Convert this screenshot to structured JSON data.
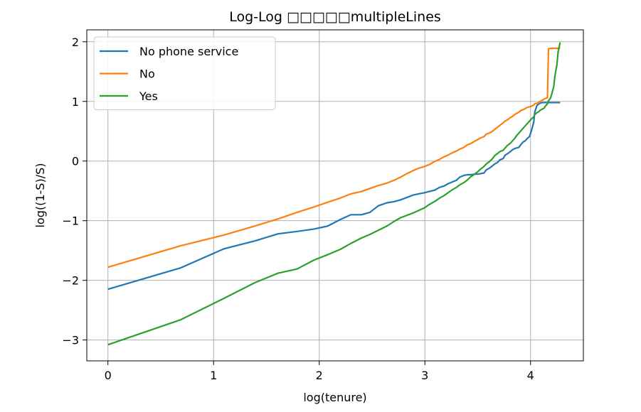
{
  "chart_data": {
    "type": "line",
    "title": "Log-Log □□□□□multipleLines",
    "xlabel": "log(tenure)",
    "ylabel": "log((1-S)/S)",
    "xlim": [
      -0.2,
      4.5
    ],
    "ylim": [
      -3.35,
      2.2
    ],
    "xticks": [
      0,
      1,
      2,
      3,
      4
    ],
    "yticks": [
      -3,
      -2,
      -1,
      0,
      1,
      2
    ],
    "xtick_labels": [
      "0",
      "1",
      "2",
      "3",
      "4"
    ],
    "ytick_labels": [
      "−3",
      "−2",
      "−1",
      "0",
      "1",
      "2"
    ],
    "grid": true,
    "legend_position": "upper-left",
    "series": [
      {
        "name": "No phone service",
        "color": "#1f77b4",
        "points": [
          [
            0,
            -2.15
          ],
          [
            0.69,
            -1.79
          ],
          [
            1.1,
            -1.47
          ],
          [
            1.39,
            -1.34
          ],
          [
            1.61,
            -1.22
          ],
          [
            1.79,
            -1.18
          ],
          [
            1.95,
            -1.14
          ],
          [
            2.08,
            -1.09
          ],
          [
            2.2,
            -0.98
          ],
          [
            2.3,
            -0.9
          ],
          [
            2.4,
            -0.9
          ],
          [
            2.48,
            -0.86
          ],
          [
            2.56,
            -0.75
          ],
          [
            2.64,
            -0.7
          ],
          [
            2.71,
            -0.68
          ],
          [
            2.77,
            -0.65
          ],
          [
            2.83,
            -0.61
          ],
          [
            2.89,
            -0.57
          ],
          [
            2.94,
            -0.55
          ],
          [
            3.0,
            -0.53
          ],
          [
            3.04,
            -0.51
          ],
          [
            3.09,
            -0.49
          ],
          [
            3.14,
            -0.44
          ],
          [
            3.18,
            -0.42
          ],
          [
            3.22,
            -0.38
          ],
          [
            3.26,
            -0.35
          ],
          [
            3.3,
            -0.32
          ],
          [
            3.33,
            -0.27
          ],
          [
            3.37,
            -0.24
          ],
          [
            3.4,
            -0.23
          ],
          [
            3.43,
            -0.23
          ],
          [
            3.47,
            -0.22
          ],
          [
            3.5,
            -0.22
          ],
          [
            3.53,
            -0.21
          ],
          [
            3.56,
            -0.2
          ],
          [
            3.58,
            -0.15
          ],
          [
            3.61,
            -0.12
          ],
          [
            3.64,
            -0.08
          ],
          [
            3.66,
            -0.05
          ],
          [
            3.69,
            -0.02
          ],
          [
            3.71,
            0.02
          ],
          [
            3.74,
            0.04
          ],
          [
            3.76,
            0.1
          ],
          [
            3.78,
            0.12
          ],
          [
            3.81,
            0.16
          ],
          [
            3.83,
            0.19
          ],
          [
            3.85,
            0.21
          ],
          [
            3.87,
            0.22
          ],
          [
            3.89,
            0.23
          ],
          [
            3.91,
            0.28
          ],
          [
            3.93,
            0.32
          ],
          [
            3.95,
            0.34
          ],
          [
            3.97,
            0.38
          ],
          [
            3.99,
            0.41
          ],
          [
            4.01,
            0.52
          ],
          [
            4.03,
            0.65
          ],
          [
            4.04,
            0.82
          ],
          [
            4.06,
            0.93
          ],
          [
            4.08,
            0.96
          ],
          [
            4.09,
            0.97
          ],
          [
            4.11,
            0.98
          ],
          [
            4.13,
            0.98
          ],
          [
            4.14,
            0.98
          ],
          [
            4.16,
            0.98
          ],
          [
            4.17,
            0.98
          ],
          [
            4.19,
            0.98
          ],
          [
            4.2,
            0.98
          ],
          [
            4.22,
            0.98
          ],
          [
            4.23,
            0.98
          ],
          [
            4.25,
            0.98
          ],
          [
            4.26,
            0.98
          ],
          [
            4.28,
            0.98
          ]
        ]
      },
      {
        "name": "No",
        "color": "#ff7f0e",
        "points": [
          [
            0,
            -1.78
          ],
          [
            0.69,
            -1.42
          ],
          [
            1.1,
            -1.24
          ],
          [
            1.39,
            -1.09
          ],
          [
            1.61,
            -0.97
          ],
          [
            1.79,
            -0.86
          ],
          [
            1.95,
            -0.77
          ],
          [
            2.08,
            -0.69
          ],
          [
            2.2,
            -0.62
          ],
          [
            2.3,
            -0.55
          ],
          [
            2.4,
            -0.51
          ],
          [
            2.48,
            -0.46
          ],
          [
            2.56,
            -0.41
          ],
          [
            2.64,
            -0.37
          ],
          [
            2.71,
            -0.32
          ],
          [
            2.77,
            -0.27
          ],
          [
            2.83,
            -0.21
          ],
          [
            2.89,
            -0.16
          ],
          [
            2.94,
            -0.12
          ],
          [
            3.0,
            -0.09
          ],
          [
            3.04,
            -0.06
          ],
          [
            3.09,
            -0.01
          ],
          [
            3.14,
            0.03
          ],
          [
            3.18,
            0.07
          ],
          [
            3.22,
            0.1
          ],
          [
            3.26,
            0.14
          ],
          [
            3.3,
            0.17
          ],
          [
            3.33,
            0.2
          ],
          [
            3.37,
            0.23
          ],
          [
            3.4,
            0.27
          ],
          [
            3.43,
            0.29
          ],
          [
            3.47,
            0.33
          ],
          [
            3.5,
            0.36
          ],
          [
            3.53,
            0.39
          ],
          [
            3.56,
            0.41
          ],
          [
            3.58,
            0.45
          ],
          [
            3.61,
            0.47
          ],
          [
            3.64,
            0.5
          ],
          [
            3.66,
            0.53
          ],
          [
            3.69,
            0.57
          ],
          [
            3.71,
            0.6
          ],
          [
            3.74,
            0.64
          ],
          [
            3.76,
            0.67
          ],
          [
            3.78,
            0.69
          ],
          [
            3.81,
            0.73
          ],
          [
            3.83,
            0.75
          ],
          [
            3.85,
            0.78
          ],
          [
            3.87,
            0.8
          ],
          [
            3.89,
            0.82
          ],
          [
            3.91,
            0.85
          ],
          [
            3.93,
            0.86
          ],
          [
            3.95,
            0.88
          ],
          [
            3.97,
            0.9
          ],
          [
            3.99,
            0.91
          ],
          [
            4.01,
            0.92
          ],
          [
            4.03,
            0.94
          ],
          [
            4.04,
            0.96
          ],
          [
            4.06,
            0.97
          ],
          [
            4.08,
            0.98
          ],
          [
            4.09,
            1.0
          ],
          [
            4.11,
            1.02
          ],
          [
            4.13,
            1.04
          ],
          [
            4.14,
            1.05
          ],
          [
            4.16,
            1.06
          ],
          [
            4.17,
            1.88
          ],
          [
            4.19,
            1.89
          ],
          [
            4.2,
            1.89
          ],
          [
            4.22,
            1.89
          ],
          [
            4.23,
            1.89
          ],
          [
            4.25,
            1.89
          ],
          [
            4.26,
            1.89
          ],
          [
            4.28,
            1.89
          ]
        ]
      },
      {
        "name": "Yes",
        "color": "#2ca02c",
        "points": [
          [
            0,
            -3.08
          ],
          [
            0.69,
            -2.66
          ],
          [
            1.1,
            -2.3
          ],
          [
            1.39,
            -2.04
          ],
          [
            1.61,
            -1.88
          ],
          [
            1.79,
            -1.81
          ],
          [
            1.95,
            -1.66
          ],
          [
            2.08,
            -1.57
          ],
          [
            2.2,
            -1.48
          ],
          [
            2.3,
            -1.38
          ],
          [
            2.4,
            -1.29
          ],
          [
            2.48,
            -1.23
          ],
          [
            2.56,
            -1.16
          ],
          [
            2.64,
            -1.09
          ],
          [
            2.71,
            -1.01
          ],
          [
            2.77,
            -0.95
          ],
          [
            2.83,
            -0.91
          ],
          [
            2.89,
            -0.87
          ],
          [
            2.94,
            -0.83
          ],
          [
            3.0,
            -0.78
          ],
          [
            3.04,
            -0.73
          ],
          [
            3.09,
            -0.68
          ],
          [
            3.14,
            -0.62
          ],
          [
            3.18,
            -0.58
          ],
          [
            3.22,
            -0.53
          ],
          [
            3.26,
            -0.48
          ],
          [
            3.3,
            -0.44
          ],
          [
            3.33,
            -0.4
          ],
          [
            3.37,
            -0.36
          ],
          [
            3.4,
            -0.32
          ],
          [
            3.43,
            -0.27
          ],
          [
            3.47,
            -0.22
          ],
          [
            3.5,
            -0.18
          ],
          [
            3.53,
            -0.13
          ],
          [
            3.56,
            -0.09
          ],
          [
            3.58,
            -0.05
          ],
          [
            3.61,
            -0.01
          ],
          [
            3.64,
            0.04
          ],
          [
            3.66,
            0.09
          ],
          [
            3.69,
            0.13
          ],
          [
            3.71,
            0.16
          ],
          [
            3.74,
            0.18
          ],
          [
            3.76,
            0.22
          ],
          [
            3.78,
            0.26
          ],
          [
            3.81,
            0.3
          ],
          [
            3.83,
            0.34
          ],
          [
            3.85,
            0.38
          ],
          [
            3.87,
            0.43
          ],
          [
            3.89,
            0.47
          ],
          [
            3.91,
            0.51
          ],
          [
            3.93,
            0.55
          ],
          [
            3.95,
            0.59
          ],
          [
            3.97,
            0.63
          ],
          [
            3.99,
            0.67
          ],
          [
            4.01,
            0.71
          ],
          [
            4.03,
            0.74
          ],
          [
            4.04,
            0.78
          ],
          [
            4.06,
            0.81
          ],
          [
            4.08,
            0.83
          ],
          [
            4.09,
            0.85
          ],
          [
            4.11,
            0.87
          ],
          [
            4.13,
            0.89
          ],
          [
            4.14,
            0.92
          ],
          [
            4.16,
            0.96
          ],
          [
            4.17,
            1.01
          ],
          [
            4.19,
            1.06
          ],
          [
            4.2,
            1.12
          ],
          [
            4.22,
            1.25
          ],
          [
            4.23,
            1.42
          ],
          [
            4.25,
            1.62
          ],
          [
            4.26,
            1.82
          ],
          [
            4.28,
            1.99
          ]
        ]
      }
    ]
  }
}
